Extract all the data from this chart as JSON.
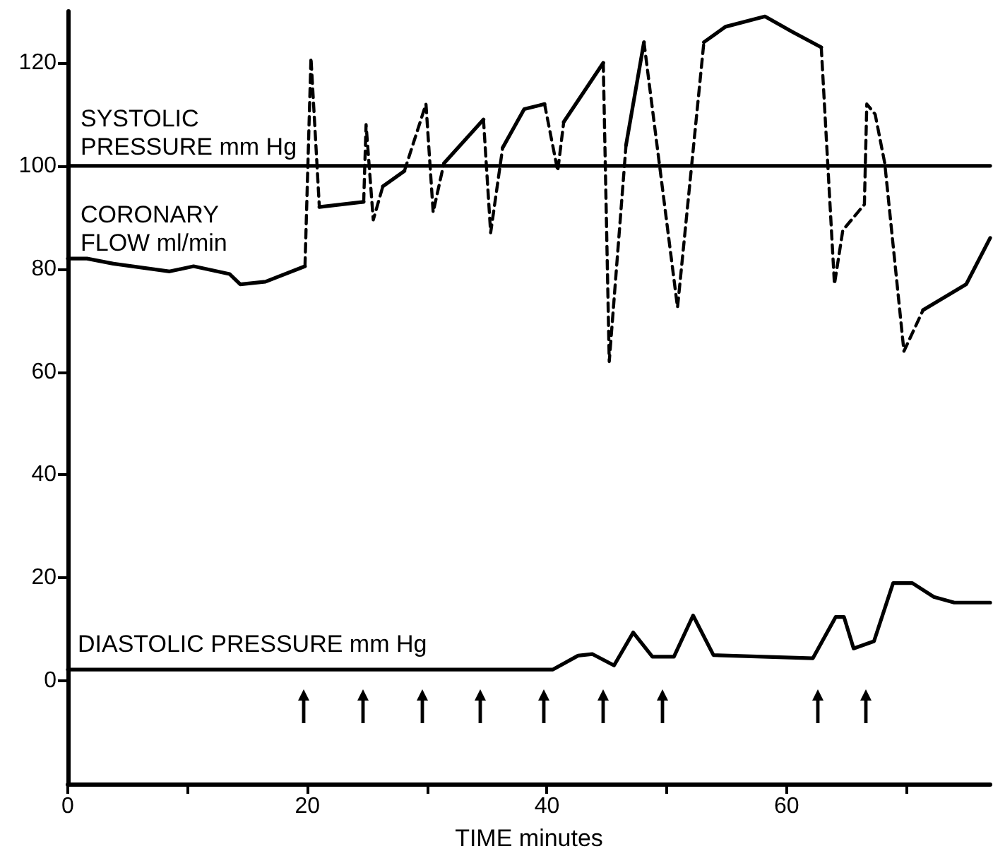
{
  "chart_data": {
    "type": "line",
    "xlabel": "TIME minutes",
    "marker": "none",
    "xlim": [
      0,
      77
    ],
    "xticks": [
      0,
      {
        "value": 10,
        "label": null
      },
      20,
      {
        "value": 30,
        "label": null
      },
      40,
      {
        "value": 50,
        "label": null
      },
      60,
      {
        "value": 70,
        "label": null
      }
    ],
    "ylim": [
      -20,
      130
    ],
    "yticks": [
      0,
      20,
      40,
      60,
      80,
      100,
      120
    ],
    "series": [
      {
        "color": "#000000",
        "line_style": "solid",
        "x": [
          0,
          77
        ],
        "values": [
          100,
          100
        ]
      },
      {
        "color": "#000000",
        "line_style": "solid",
        "x": [
          0,
          1.6,
          3.8,
          8.5,
          10.5,
          13.5,
          14.4,
          16.5,
          19.8
        ],
        "values": [
          82,
          82,
          81,
          79.5,
          80.5,
          79,
          77,
          77.5,
          80.5
        ]
      },
      {
        "color": "#000000",
        "line_style": "dashed",
        "x": [
          19.8,
          20.3,
          21
        ],
        "values": [
          80.5,
          121,
          92
        ]
      },
      {
        "color": "#000000",
        "line_style": "solid",
        "x": [
          21,
          24.7
        ],
        "values": [
          92,
          93
        ]
      },
      {
        "color": "#000000",
        "line_style": "dashed",
        "x": [
          24.7,
          24.9,
          25.5,
          26.3
        ],
        "values": [
          93,
          108,
          89.5,
          96
        ]
      },
      {
        "color": "#000000",
        "line_style": "solid",
        "x": [
          26.3,
          28.1
        ],
        "values": [
          96,
          99
        ]
      },
      {
        "color": "#000000",
        "line_style": "dashed",
        "x": [
          28.1,
          29.9,
          30.5,
          31.4
        ],
        "values": [
          99,
          112,
          91,
          100.5
        ]
      },
      {
        "color": "#000000",
        "line_style": "solid",
        "x": [
          31.4,
          34.7
        ],
        "values": [
          100.5,
          109
        ]
      },
      {
        "color": "#000000",
        "line_style": "dashed",
        "x": [
          34.7,
          35.3,
          36.3
        ],
        "values": [
          109,
          87,
          103.5
        ]
      },
      {
        "color": "#000000",
        "line_style": "solid",
        "x": [
          36.3,
          38.1,
          39.8
        ],
        "values": [
          103.5,
          111,
          112
        ]
      },
      {
        "color": "#000000",
        "line_style": "dashed",
        "x": [
          39.8,
          40.9,
          41.4
        ],
        "values": [
          112,
          99,
          108.5
        ]
      },
      {
        "color": "#000000",
        "line_style": "solid",
        "x": [
          41.4,
          44.7
        ],
        "values": [
          108.5,
          120
        ]
      },
      {
        "color": "#000000",
        "line_style": "dashed",
        "x": [
          44.7,
          45.2,
          46.6
        ],
        "values": [
          120,
          62,
          104
        ]
      },
      {
        "color": "#000000",
        "line_style": "solid",
        "x": [
          46.6,
          48.1
        ],
        "values": [
          104,
          124
        ]
      },
      {
        "color": "#000000",
        "line_style": "dashed",
        "x": [
          48.1,
          50.9,
          53.1
        ],
        "values": [
          124,
          72.5,
          124
        ]
      },
      {
        "color": "#000000",
        "line_style": "solid",
        "x": [
          53.1,
          54.9,
          58.2,
          60.5,
          62.9
        ],
        "values": [
          124,
          127,
          129,
          126,
          123
        ]
      },
      {
        "color": "#000000",
        "line_style": "dashed",
        "x": [
          62.9,
          64,
          64.7,
          66.5,
          66.7,
          67.4,
          68.2,
          69.8,
          71.4
        ],
        "values": [
          123,
          77,
          87.5,
          92.5,
          112,
          110,
          100.5,
          64,
          72
        ]
      },
      {
        "color": "#000000",
        "line_style": "solid",
        "x": [
          71.4,
          75,
          77
        ],
        "values": [
          72,
          77,
          86
        ]
      },
      {
        "color": "#000000",
        "line_style": "solid",
        "x": [
          0,
          40.5,
          42.6,
          43.8,
          45.6,
          47.2,
          48.8,
          50.6,
          52.2,
          53.9,
          62.2,
          64.1,
          64.8,
          65.6,
          67.3,
          68.9,
          70.5,
          72.3,
          74,
          77
        ],
        "values": [
          2.2,
          2.2,
          4.9,
          5.2,
          3,
          9.4,
          4.7,
          4.7,
          12.7,
          5,
          4.4,
          12.4,
          12.4,
          6.3,
          7.7,
          19,
          19,
          16.3,
          15.2,
          15.2
        ]
      }
    ],
    "annotations": [
      "SYSTOLIC\nPRESSURE mm Hg",
      "CORONARY\nFLOW ml/min",
      "DIASTOLIC PRESSURE mm Hg"
    ]
  }
}
